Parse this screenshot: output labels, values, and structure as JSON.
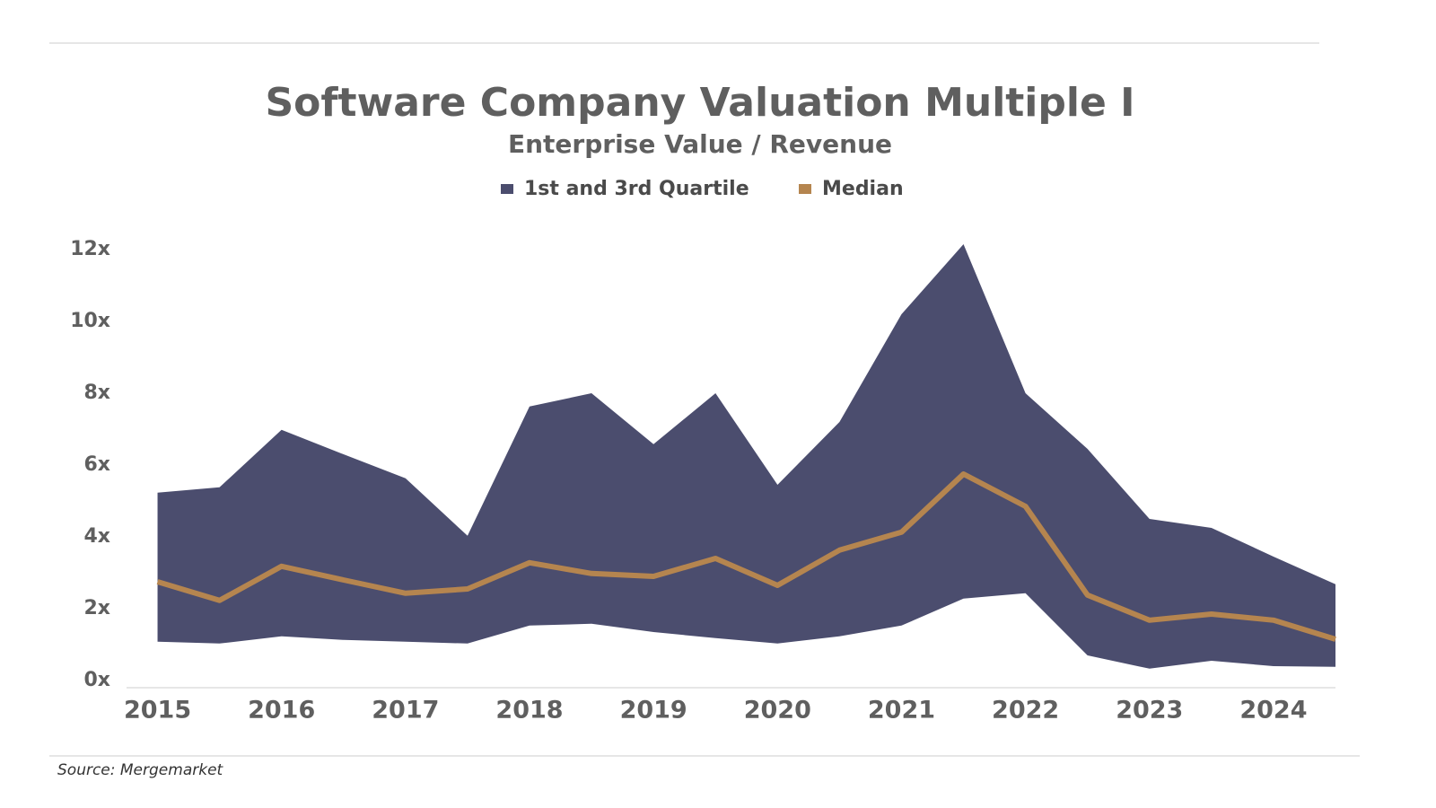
{
  "chart_data": {
    "type": "line",
    "title": "Software Company Valuation Multiple I",
    "subtitle": "Enterprise Value / Revenue",
    "source": "Source: Mergemarket",
    "x": [
      2015,
      2015.5,
      2016,
      2016.5,
      2017,
      2017.5,
      2018,
      2018.5,
      2019,
      2019.5,
      2020,
      2020.5,
      2021,
      2021.5,
      2022,
      2022.5,
      2023,
      2023.5,
      2024,
      2024.5
    ],
    "xlim": [
      2014.75,
      2024.5
    ],
    "xticks": [
      2015,
      2016,
      2017,
      2018,
      2019,
      2020,
      2021,
      2022,
      2023,
      2024
    ],
    "ylim": [
      0,
      12.2
    ],
    "yticks": [
      {
        "value": 0,
        "label": "0x"
      },
      {
        "value": 2,
        "label": "2x"
      },
      {
        "value": 4,
        "label": "4x"
      },
      {
        "value": 6,
        "label": "6x"
      },
      {
        "value": 8,
        "label": "8x"
      },
      {
        "value": 10,
        "label": "10x"
      },
      {
        "value": 12,
        "label": "12x"
      }
    ],
    "legend": "top",
    "series": [
      {
        "name": "1st and 3rd Quartile",
        "color": "#4b4d6e",
        "low": [
          1.08,
          1.03,
          1.23,
          1.13,
          1.08,
          1.03,
          1.53,
          1.58,
          1.35,
          1.18,
          1.03,
          1.23,
          1.53,
          2.28,
          2.43,
          0.7,
          0.33,
          0.55,
          0.4,
          0.38
        ],
        "high": [
          5.23,
          5.38,
          6.98,
          6.3,
          5.63,
          4.03,
          7.63,
          8.0,
          6.58,
          8.0,
          5.45,
          7.2,
          10.2,
          12.15,
          8.0,
          6.45,
          4.5,
          4.25,
          3.45,
          2.68
        ]
      },
      {
        "name": "Median",
        "color": "#b5854f",
        "values": [
          2.75,
          2.23,
          3.18,
          2.8,
          2.43,
          2.55,
          3.28,
          2.98,
          2.9,
          3.4,
          2.65,
          3.63,
          4.13,
          5.75,
          4.85,
          2.38,
          1.68,
          1.85,
          1.68,
          1.15
        ]
      }
    ]
  }
}
